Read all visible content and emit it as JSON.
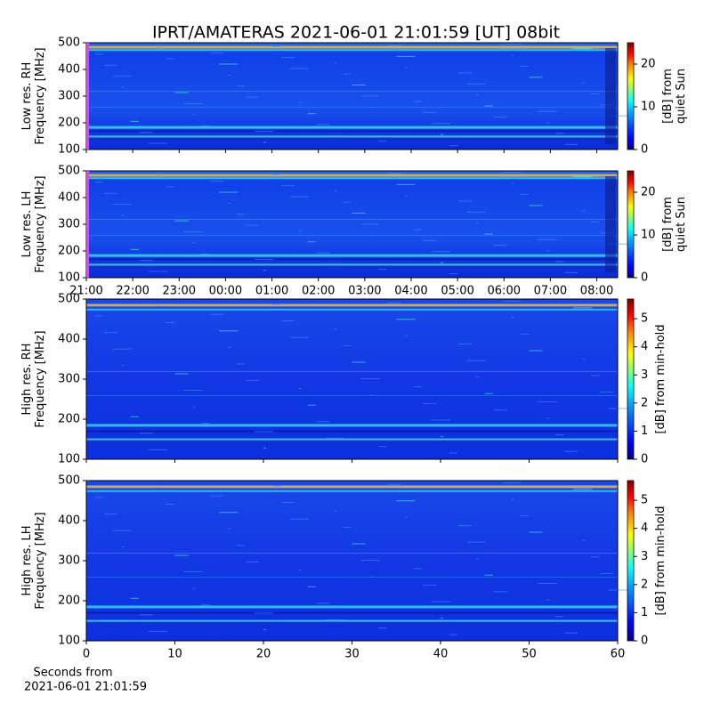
{
  "title": "IPRT/AMATERAS 2021-06-01 21:01:59 [UT]   08bit",
  "chart_data": [
    {
      "type": "spectrogram",
      "ylabel": [
        "Low res. RH",
        "Frequency [MHz]"
      ],
      "xlim": [
        21,
        32.45
      ],
      "xticks": [
        {
          "value": 21,
          "label": "21:00"
        },
        {
          "value": 22,
          "label": "22:00"
        },
        {
          "value": 23,
          "label": "23:00"
        },
        {
          "value": 24,
          "label": "00:00"
        },
        {
          "value": 25,
          "label": "01:00"
        },
        {
          "value": 26,
          "label": "02:00"
        },
        {
          "value": 27,
          "label": "03:00"
        },
        {
          "value": 28,
          "label": "04:00"
        },
        {
          "value": 29,
          "label": "05:00"
        },
        {
          "value": 30,
          "label": "06:00"
        },
        {
          "value": 31,
          "label": "07:00"
        },
        {
          "value": 32,
          "label": "08:00"
        }
      ],
      "xticklabels": false,
      "marker_x": 21.03,
      "marker_color": "#ff33ff",
      "ylim": [
        100,
        500
      ],
      "yticks": [
        100,
        200,
        300,
        400,
        500
      ],
      "colorbar_label": [
        "[dB] from",
        "quiet Sun"
      ],
      "clim": [
        0,
        25
      ],
      "cticks": [
        0,
        10,
        20
      ]
    },
    {
      "type": "spectrogram",
      "ylabel": [
        "Low res. LH",
        "Frequency [MHz]"
      ],
      "xlim": [
        21,
        32.45
      ],
      "xticks": [
        {
          "value": 21,
          "label": "21:00"
        },
        {
          "value": 22,
          "label": "22:00"
        },
        {
          "value": 23,
          "label": "23:00"
        },
        {
          "value": 24,
          "label": "00:00"
        },
        {
          "value": 25,
          "label": "01:00"
        },
        {
          "value": 26,
          "label": "02:00"
        },
        {
          "value": 27,
          "label": "03:00"
        },
        {
          "value": 28,
          "label": "04:00"
        },
        {
          "value": 29,
          "label": "05:00"
        },
        {
          "value": 30,
          "label": "06:00"
        },
        {
          "value": 31,
          "label": "07:00"
        },
        {
          "value": 32,
          "label": "08:00"
        }
      ],
      "xticklabels": true,
      "marker_x": 21.03,
      "marker_color": "#ff33ff",
      "ylim": [
        100,
        500
      ],
      "yticks": [
        100,
        200,
        300,
        400,
        500
      ],
      "colorbar_label": [
        "[dB] from",
        "quiet Sun"
      ],
      "clim": [
        0,
        25
      ],
      "cticks": [
        0,
        10,
        20
      ]
    },
    {
      "type": "spectrogram",
      "ylabel": [
        "High res. RH",
        "Frequency [MHz]"
      ],
      "xlim": [
        0,
        60
      ],
      "xticks": [
        0,
        10,
        20,
        30,
        40,
        50,
        60
      ],
      "xticklabels": false,
      "ylim": [
        100,
        500
      ],
      "yticks": [
        100,
        200,
        300,
        400,
        500
      ],
      "colorbar_label": [
        "[dB] from min-hold"
      ],
      "clim": [
        0,
        5.7
      ],
      "cticks": [
        0,
        1,
        2,
        3,
        4,
        5
      ]
    },
    {
      "type": "spectrogram",
      "ylabel": [
        "High res. LH",
        "Frequency [MHz]"
      ],
      "xlim": [
        0,
        60
      ],
      "xticks": [
        0,
        10,
        20,
        30,
        40,
        50,
        60
      ],
      "xticklabels": true,
      "xlabel": [
        "Seconds from",
        "2021-06-01 21:01:59"
      ],
      "ylim": [
        100,
        500
      ],
      "yticks": [
        100,
        200,
        300,
        400,
        500
      ],
      "colorbar_label": [
        "[dB] from min-hold"
      ],
      "clim": [
        0,
        5.7
      ],
      "cticks": [
        0,
        1,
        2,
        3,
        4,
        5
      ]
    }
  ]
}
